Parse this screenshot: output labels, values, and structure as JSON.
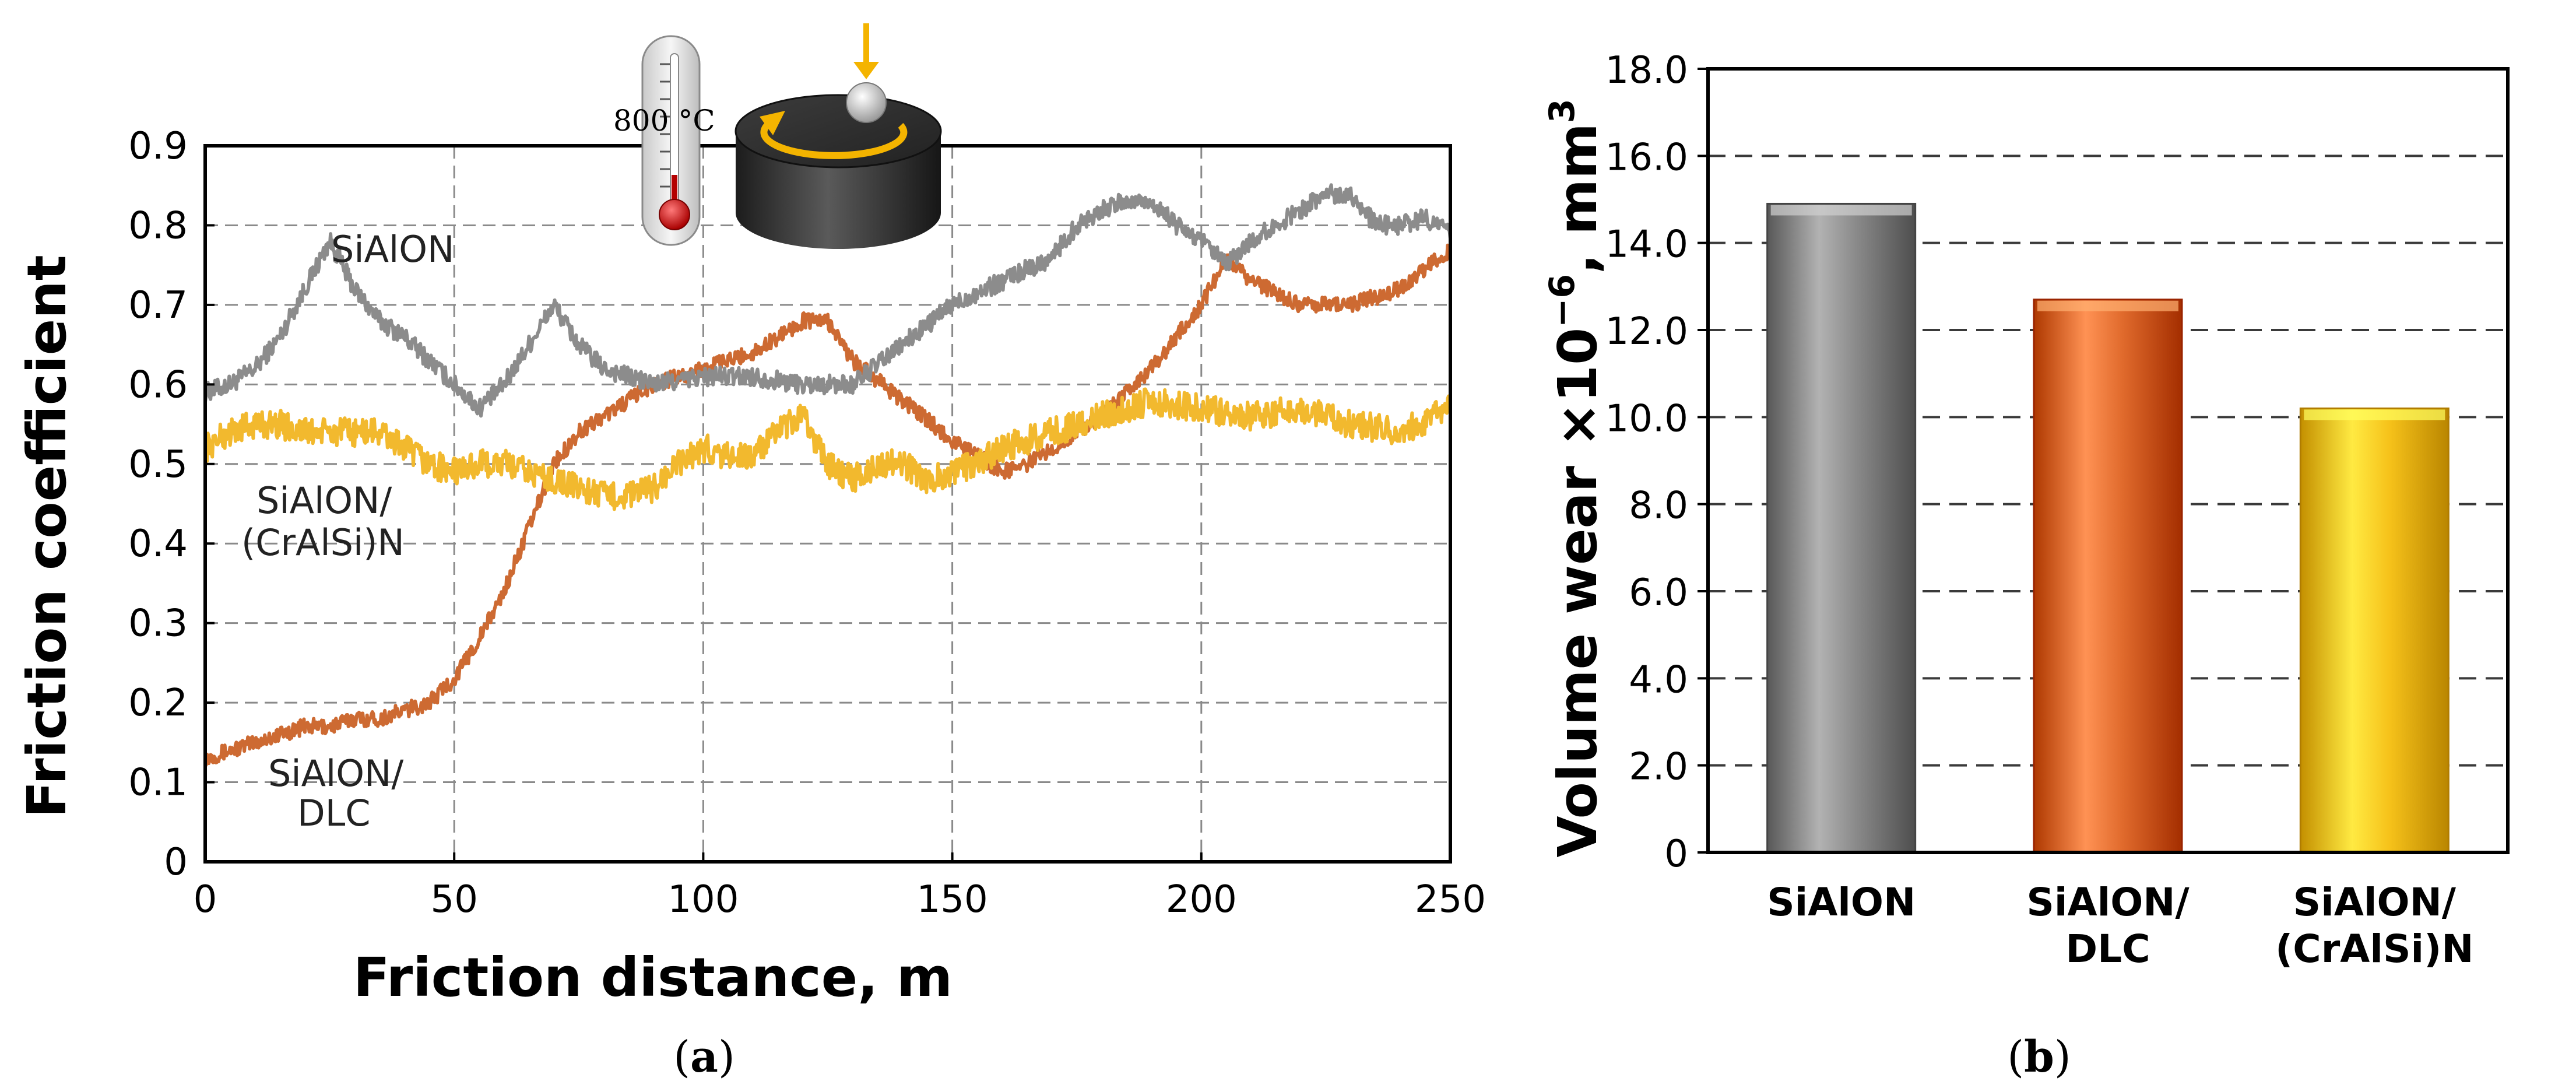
{
  "chart_data": [
    {
      "type": "line",
      "panel_label": "a",
      "title": "",
      "xlabel": "Friction distance, m",
      "ylabel": "Friction coefficient",
      "xlim": [
        0,
        250
      ],
      "ylim": [
        0,
        0.9
      ],
      "xticks": [
        0,
        50,
        100,
        150,
        200,
        250
      ],
      "yticks": [
        0,
        0.1,
        0.2,
        0.3,
        0.4,
        0.5,
        0.6,
        0.7,
        0.8,
        0.9
      ],
      "grid": true,
      "inset": {
        "temperature_label": "800 °C"
      },
      "series": [
        {
          "name": "SiAlON",
          "label_lines": [
            "SiAlON"
          ],
          "color": "#8c8c8c",
          "noise": 0.012,
          "x": [
            0,
            5,
            10,
            15,
            20,
            25,
            30,
            35,
            40,
            45,
            50,
            55,
            60,
            65,
            70,
            75,
            80,
            85,
            90,
            100,
            110,
            120,
            130,
            140,
            150,
            160,
            170,
            175,
            180,
            185,
            190,
            195,
            200,
            205,
            210,
            215,
            220,
            225,
            230,
            235,
            240,
            245,
            250
          ],
          "y": [
            0.59,
            0.6,
            0.62,
            0.66,
            0.72,
            0.78,
            0.72,
            0.68,
            0.66,
            0.63,
            0.6,
            0.57,
            0.6,
            0.65,
            0.7,
            0.65,
            0.62,
            0.61,
            0.6,
            0.61,
            0.61,
            0.6,
            0.6,
            0.65,
            0.7,
            0.73,
            0.76,
            0.8,
            0.82,
            0.83,
            0.83,
            0.8,
            0.78,
            0.75,
            0.78,
            0.8,
            0.82,
            0.84,
            0.84,
            0.8,
            0.8,
            0.81,
            0.79
          ]
        },
        {
          "name": "SiAlON/DLC",
          "label_lines": [
            "SiAlON/",
            "DLC"
          ],
          "color": "#cd6a32",
          "noise": 0.01,
          "x": [
            0,
            5,
            10,
            15,
            20,
            25,
            30,
            35,
            40,
            45,
            50,
            55,
            60,
            65,
            70,
            75,
            80,
            90,
            100,
            110,
            120,
            125,
            130,
            140,
            150,
            160,
            165,
            170,
            180,
            190,
            200,
            205,
            210,
            220,
            230,
            240,
            250
          ],
          "y": [
            0.13,
            0.14,
            0.15,
            0.16,
            0.17,
            0.17,
            0.18,
            0.18,
            0.19,
            0.2,
            0.23,
            0.28,
            0.34,
            0.42,
            0.5,
            0.54,
            0.56,
            0.6,
            0.62,
            0.64,
            0.68,
            0.68,
            0.63,
            0.58,
            0.53,
            0.49,
            0.5,
            0.52,
            0.56,
            0.62,
            0.7,
            0.76,
            0.73,
            0.7,
            0.7,
            0.72,
            0.77
          ]
        },
        {
          "name": "SiAlON/(CrAlSi)N",
          "label_lines": [
            "SiAlON/",
            "(CrAlSi)N"
          ],
          "color": "#f2b92e",
          "noise": 0.018,
          "x": [
            0,
            5,
            10,
            15,
            20,
            25,
            30,
            35,
            40,
            45,
            50,
            55,
            60,
            65,
            70,
            75,
            80,
            85,
            90,
            95,
            100,
            105,
            110,
            115,
            120,
            125,
            130,
            135,
            140,
            145,
            150,
            155,
            160,
            170,
            180,
            190,
            200,
            210,
            220,
            230,
            240,
            250
          ],
          "y": [
            0.52,
            0.54,
            0.55,
            0.55,
            0.54,
            0.54,
            0.54,
            0.54,
            0.52,
            0.5,
            0.49,
            0.5,
            0.5,
            0.49,
            0.48,
            0.47,
            0.46,
            0.46,
            0.47,
            0.5,
            0.52,
            0.51,
            0.51,
            0.54,
            0.56,
            0.5,
            0.48,
            0.5,
            0.5,
            0.48,
            0.49,
            0.5,
            0.52,
            0.54,
            0.56,
            0.58,
            0.57,
            0.56,
            0.57,
            0.55,
            0.54,
            0.57
          ]
        }
      ]
    },
    {
      "type": "bar",
      "panel_label": "b",
      "title": "",
      "xlabel": "",
      "ylabel_main": "Volume wear ×10",
      "ylabel_exp": "−6",
      "ylabel_unit": ", mm",
      "ylabel_unit_exp": "3",
      "ylim": [
        0,
        18
      ],
      "yticks": [
        0,
        2,
        4,
        6,
        8,
        10,
        12,
        14,
        16,
        18
      ],
      "ytick_labels": [
        "0",
        "2.0",
        "4.0",
        "6.0",
        "8.0",
        "10.0",
        "12.0",
        "14.0",
        "16.0",
        "18.0"
      ],
      "grid": true,
      "categories": [
        {
          "name": "SiAlON",
          "label_lines": [
            "SiAlON"
          ]
        },
        {
          "name": "SiAlON/DLC",
          "label_lines": [
            "SiAlON/",
            "DLC"
          ]
        },
        {
          "name": "SiAlON/(CrAlSi)N",
          "label_lines": [
            "SiAlON/",
            "(CrAlSi)N"
          ]
        }
      ],
      "values": [
        14.9,
        12.7,
        10.2
      ],
      "colors": [
        "#8a8a8a",
        "#e06a2c",
        "#f6c21a"
      ]
    }
  ]
}
